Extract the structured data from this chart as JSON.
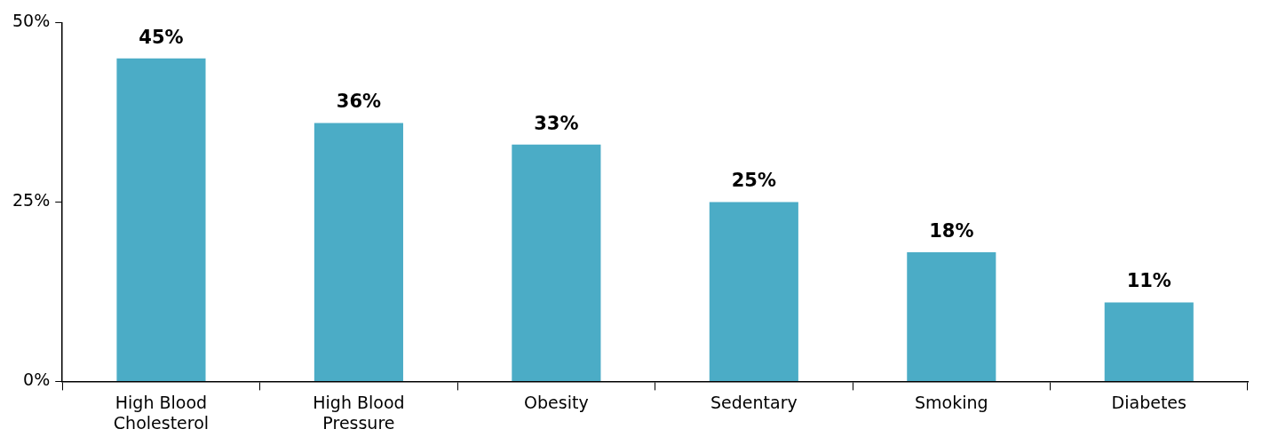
{
  "chart_data": {
    "type": "bar",
    "categories": [
      "High Blood Cholesterol",
      "High Blood Pressure",
      "Obesity",
      "Sedentary",
      "Smoking",
      "Diabetes"
    ],
    "values": [
      45,
      36,
      33,
      25,
      18,
      11
    ],
    "color": "#4bacc6",
    "value_labels": [
      "45%",
      "36%",
      "33%",
      "25%",
      "18%",
      "11%"
    ],
    "ylim": [
      0,
      50
    ],
    "yticks": [
      {
        "value": 0,
        "label": "0%"
      },
      {
        "value": 25,
        "label": "25%"
      },
      {
        "value": 50,
        "label": "50%"
      }
    ],
    "grid": false,
    "legend": false
  }
}
